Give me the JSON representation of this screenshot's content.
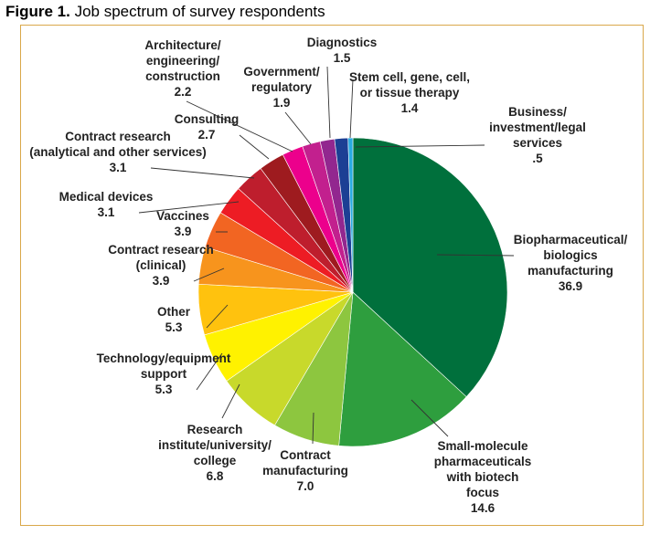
{
  "figure": {
    "number": "Figure 1.",
    "title": "Job spectrum of survey respondents"
  },
  "chart_data": {
    "type": "pie",
    "title": "Job spectrum of survey respondents",
    "slices": [
      {
        "label": [
          "Biopharmaceutical/",
          "biologics",
          "manufacturing"
        ],
        "value": 36.9,
        "value_text": "36.9",
        "color": "#00703c"
      },
      {
        "label": [
          "Small-molecule",
          "pharmaceuticals",
          "with biotech",
          "focus"
        ],
        "value": 14.6,
        "value_text": "14.6",
        "color": "#2e9e3e"
      },
      {
        "label": [
          "Contract",
          "manufacturing"
        ],
        "value": 7.0,
        "value_text": "7.0",
        "color": "#8dc63f"
      },
      {
        "label": [
          "Research",
          "institute/university/",
          "college"
        ],
        "value": 6.8,
        "value_text": "6.8",
        "color": "#c8d92b"
      },
      {
        "label": [
          "Technology/equipment",
          "support"
        ],
        "value": 5.3,
        "value_text": "5.3",
        "color": "#fff200"
      },
      {
        "label": [
          "Other"
        ],
        "value": 5.3,
        "value_text": "5.3",
        "color": "#ffc20e"
      },
      {
        "label": [
          "Contract research",
          "(clinical)"
        ],
        "value": 3.9,
        "value_text": "3.9",
        "color": "#f7941d"
      },
      {
        "label": [
          "Vaccines"
        ],
        "value": 3.9,
        "value_text": "3.9",
        "color": "#f26522"
      },
      {
        "label": [
          "Medical devices"
        ],
        "value": 3.1,
        "value_text": "3.1",
        "color": "#ed1c24"
      },
      {
        "label": [
          "Contract research",
          "(analytical and other services)"
        ],
        "value": 3.1,
        "value_text": "3.1",
        "color": "#be1e2d"
      },
      {
        "label": [
          "Consulting"
        ],
        "value": 2.7,
        "value_text": "2.7",
        "color": "#9e1b1f"
      },
      {
        "label": [
          "Architecture/",
          "engineering/",
          "construction"
        ],
        "value": 2.2,
        "value_text": "2.2",
        "color": "#ec008c"
      },
      {
        "label": [
          "Government/",
          "regulatory"
        ],
        "value": 1.9,
        "value_text": "1.9",
        "color": "#c2208e"
      },
      {
        "label": [
          "Diagnostics"
        ],
        "value": 1.5,
        "value_text": "1.5",
        "color": "#92278f"
      },
      {
        "label": [
          "Stem cell, gene, cell,",
          "or tissue therapy"
        ],
        "value": 1.4,
        "value_text": "1.4",
        "color": "#1c3f94"
      },
      {
        "label": [
          "Business/",
          "investment/legal",
          "services"
        ],
        "value": 0.5,
        "value_text": ".5",
        "color": "#29abe2"
      }
    ]
  }
}
